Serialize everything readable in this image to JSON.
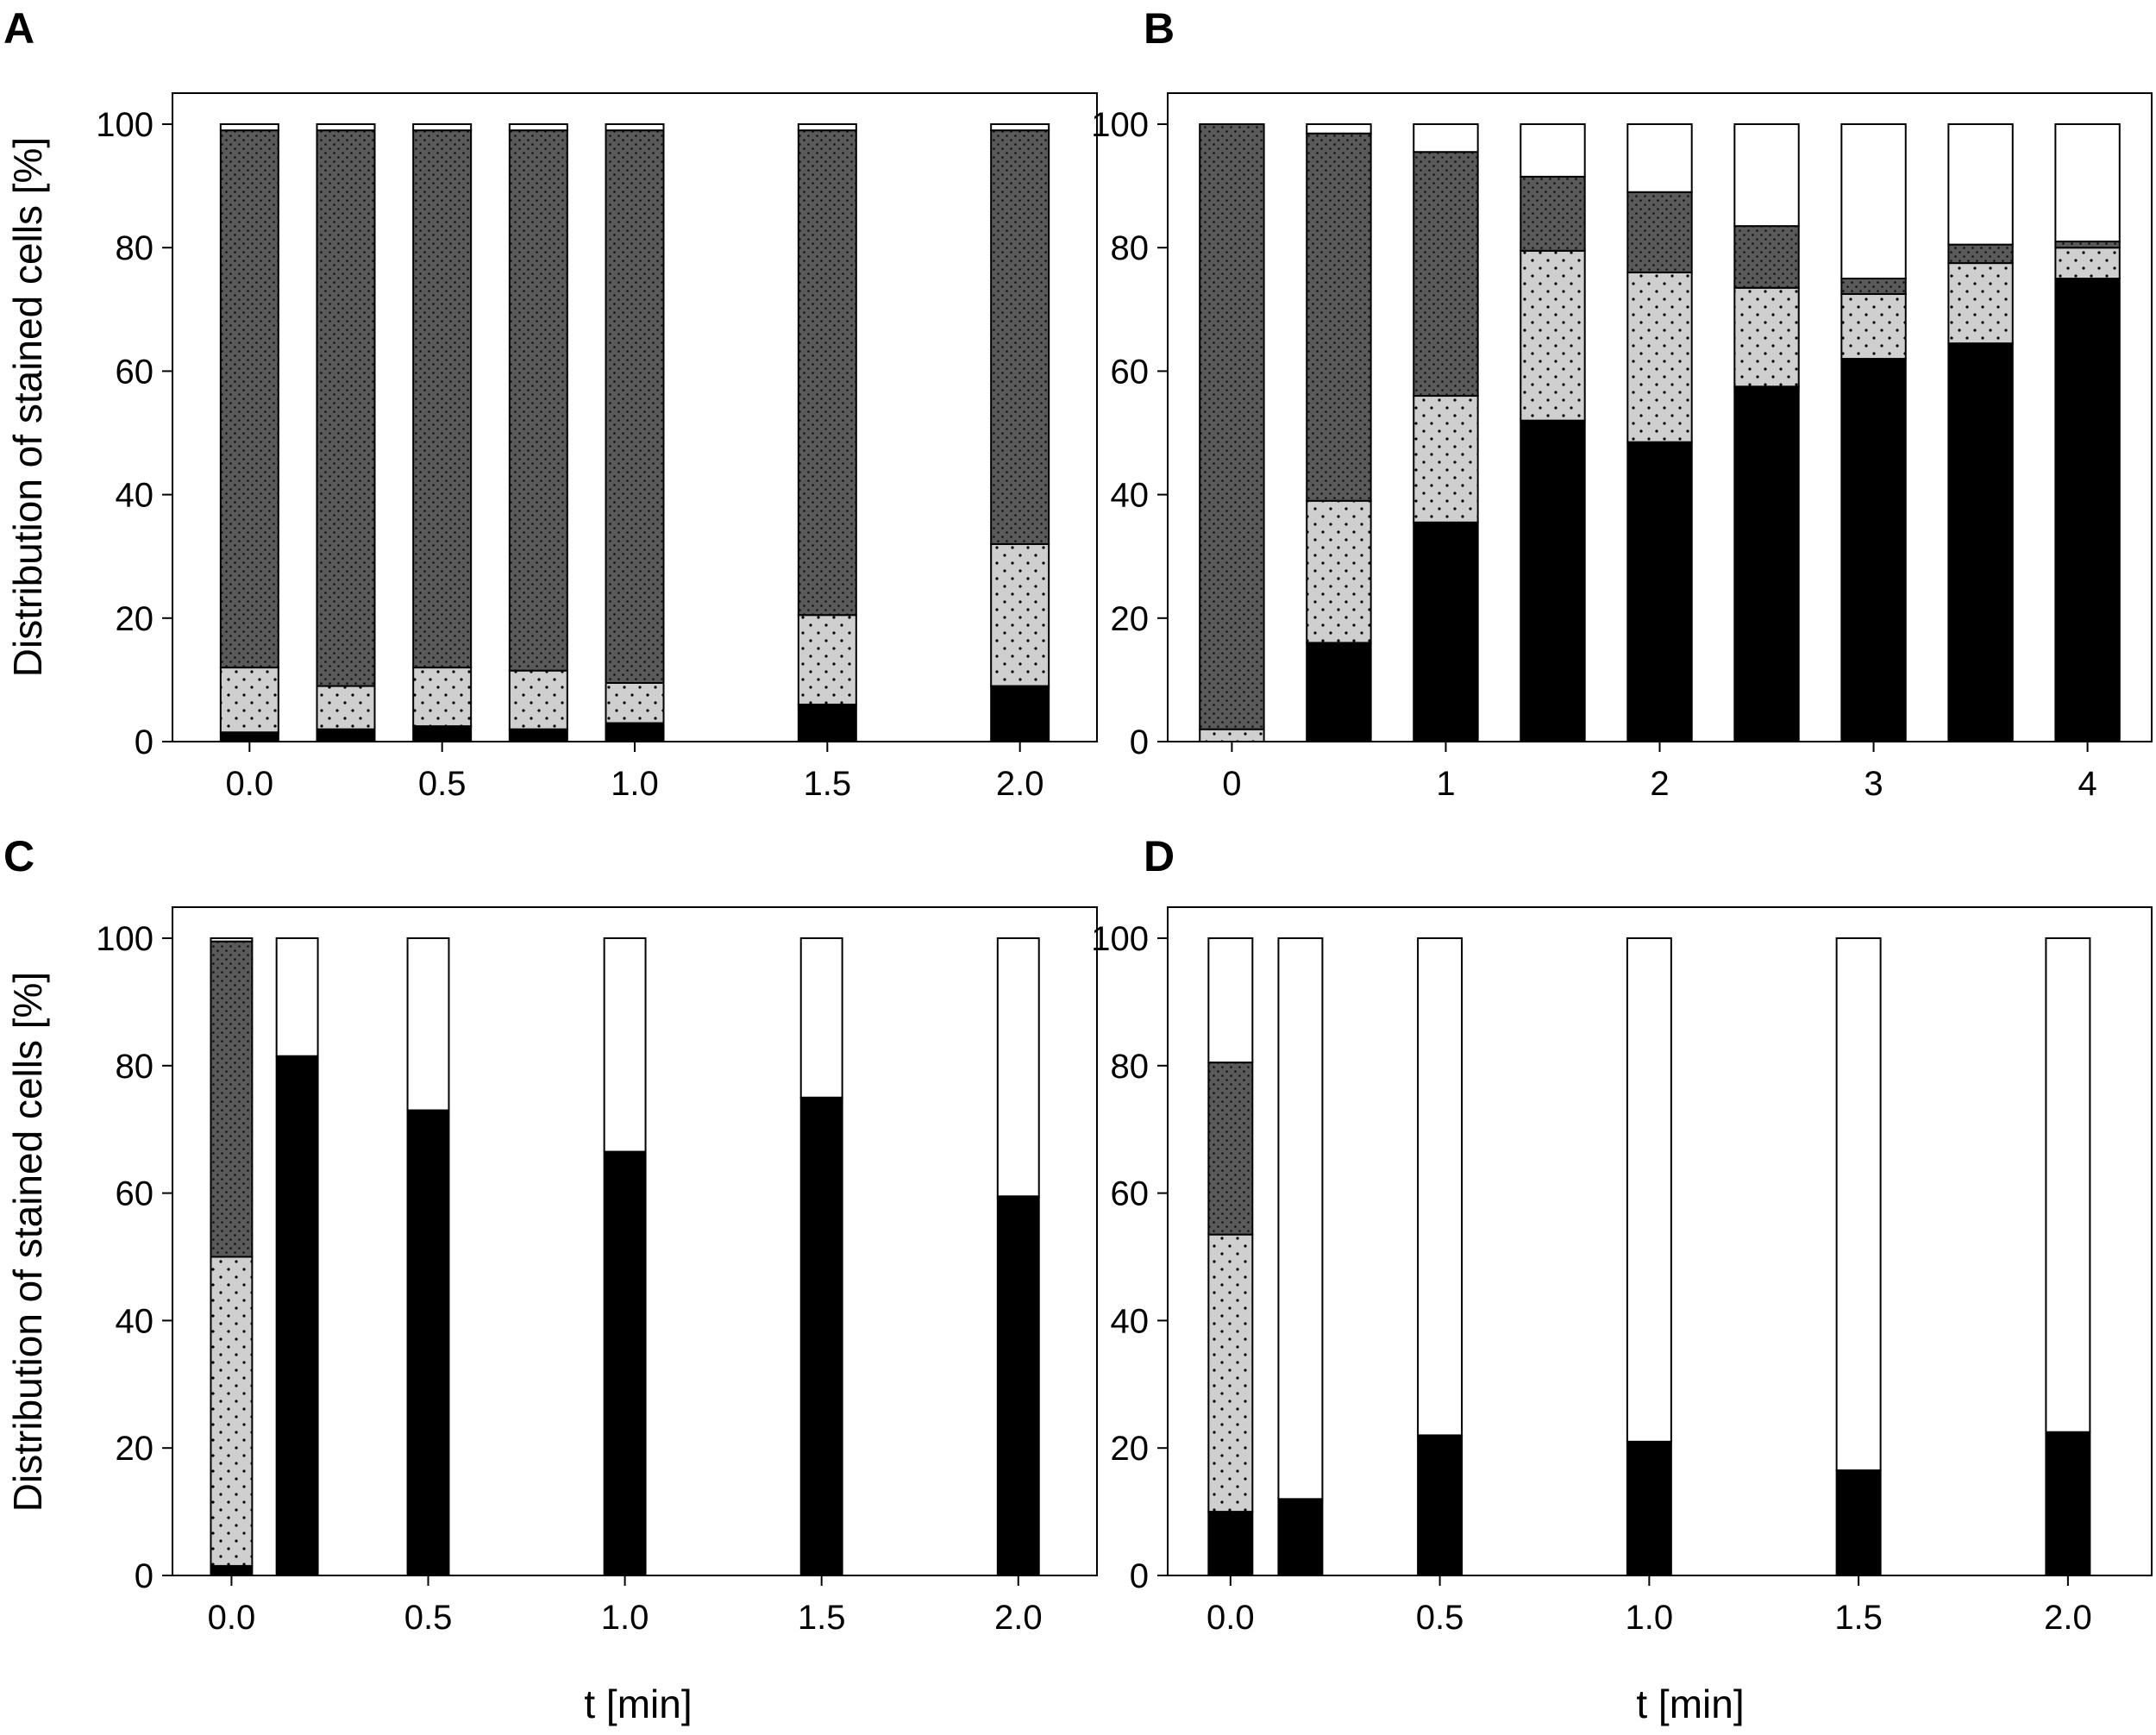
{
  "figure": {
    "ylabel": "Distribution of stained cells [%]",
    "xlabel": "t [min]"
  },
  "colors": {
    "black": "#000000",
    "light_dotted": "#cfcfcf",
    "dark_dotted": "#5a5a5a",
    "white": "#ffffff"
  },
  "chart_data": [
    {
      "panel": "A",
      "type": "bar",
      "stacked": true,
      "xlim": [
        -0.2,
        2.2
      ],
      "ylim": [
        0,
        100
      ],
      "x_ticks": [
        0.0,
        0.5,
        1.0,
        1.5,
        2.0
      ],
      "x_tick_labels": [
        "0.0",
        "0.5",
        "1.0",
        "1.5",
        "2.0"
      ],
      "y_ticks": [
        0,
        20,
        40,
        60,
        80,
        100
      ],
      "y_tick_labels": [
        "0",
        "20",
        "40",
        "60",
        "80",
        "100"
      ],
      "bar_width": 0.15,
      "x": [
        0.0,
        0.25,
        0.5,
        0.75,
        1.0,
        1.5,
        2.0
      ],
      "series": [
        {
          "name": "black",
          "values": [
            1.5,
            2,
            2.5,
            2,
            3,
            6,
            9
          ]
        },
        {
          "name": "light_dotted",
          "values": [
            10.5,
            7,
            9.5,
            9.5,
            6.5,
            14.5,
            23
          ]
        },
        {
          "name": "dark_dotted",
          "values": [
            87,
            90,
            87,
            87.5,
            89.5,
            78.5,
            67
          ]
        },
        {
          "name": "white",
          "values": [
            1,
            1,
            1,
            1,
            1,
            1,
            1
          ]
        }
      ]
    },
    {
      "panel": "B",
      "type": "bar",
      "stacked": true,
      "xlim": [
        -0.3,
        4.3
      ],
      "ylim": [
        0,
        100
      ],
      "x_ticks": [
        0,
        1,
        2,
        3,
        4
      ],
      "x_tick_labels": [
        "0",
        "1",
        "2",
        "3",
        "4"
      ],
      "y_ticks": [
        0,
        20,
        40,
        60,
        80,
        100
      ],
      "y_tick_labels": [
        "0",
        "20",
        "40",
        "60",
        "80",
        "100"
      ],
      "bar_width": 0.3,
      "x": [
        0,
        0.5,
        1,
        1.5,
        2,
        2.5,
        3,
        3.5,
        4
      ],
      "series": [
        {
          "name": "black",
          "values": [
            0,
            16,
            35.5,
            52,
            48.5,
            57.5,
            62,
            64.5,
            75
          ]
        },
        {
          "name": "light_dotted",
          "values": [
            2,
            23,
            20.5,
            27.5,
            27.5,
            16,
            10.5,
            13,
            5
          ]
        },
        {
          "name": "dark_dotted",
          "values": [
            98,
            59.5,
            39.5,
            12,
            13,
            10,
            2.5,
            3,
            1
          ]
        },
        {
          "name": "white",
          "values": [
            0,
            1.5,
            4.5,
            8.5,
            11,
            16.5,
            25,
            19.5,
            19
          ]
        }
      ]
    },
    {
      "panel": "C",
      "type": "bar",
      "stacked": true,
      "xlim": [
        -0.15,
        2.2
      ],
      "ylim": [
        0,
        100
      ],
      "x_ticks": [
        0.0,
        0.5,
        1.0,
        1.5,
        2.0
      ],
      "x_tick_labels": [
        "0.0",
        "0.5",
        "1.0",
        "1.5",
        "2.0"
      ],
      "y_ticks": [
        0,
        20,
        40,
        60,
        80,
        100
      ],
      "y_tick_labels": [
        "0",
        "20",
        "40",
        "60",
        "80",
        "100"
      ],
      "bar_width": 0.105,
      "x": [
        0.0,
        0.167,
        0.5,
        1.0,
        1.5,
        2.0
      ],
      "series": [
        {
          "name": "black",
          "values": [
            1.5,
            81.5,
            73,
            66.5,
            75,
            59.5
          ]
        },
        {
          "name": "light_dotted",
          "values": [
            48.5,
            0,
            0,
            0,
            0,
            0
          ]
        },
        {
          "name": "dark_dotted",
          "values": [
            49.5,
            0,
            0,
            0,
            0,
            0
          ]
        },
        {
          "name": "white",
          "values": [
            0.5,
            18.5,
            27,
            33.5,
            25,
            40.5
          ]
        }
      ]
    },
    {
      "panel": "D",
      "type": "bar",
      "stacked": true,
      "xlim": [
        -0.15,
        2.2
      ],
      "ylim": [
        0,
        100
      ],
      "x_ticks": [
        0.0,
        0.5,
        1.0,
        1.5,
        2.0
      ],
      "x_tick_labels": [
        "0.0",
        "0.5",
        "1.0",
        "1.5",
        "2.0"
      ],
      "y_ticks": [
        0,
        20,
        40,
        60,
        80,
        100
      ],
      "y_tick_labels": [
        "0",
        "20",
        "40",
        "60",
        "80",
        "100"
      ],
      "bar_width": 0.105,
      "x": [
        0.0,
        0.167,
        0.5,
        1.0,
        1.5,
        2.0
      ],
      "series": [
        {
          "name": "black",
          "values": [
            10,
            12,
            22,
            21,
            16.5,
            22.5
          ]
        },
        {
          "name": "light_dotted",
          "values": [
            43.5,
            0,
            0,
            0,
            0,
            0
          ]
        },
        {
          "name": "dark_dotted",
          "values": [
            27,
            0,
            0,
            0,
            0,
            0
          ]
        },
        {
          "name": "white",
          "values": [
            19.5,
            88,
            78,
            79,
            83.5,
            77.5
          ]
        }
      ]
    }
  ]
}
